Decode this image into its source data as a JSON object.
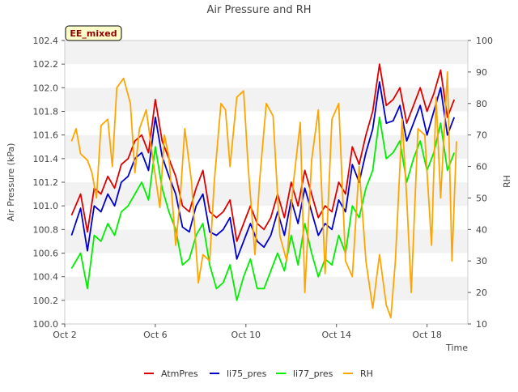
{
  "chart_data": {
    "type": "line",
    "title": "Air Pressure and RH",
    "badge": "EE_mixed",
    "xlabel": "Time",
    "ylabel": "Air Pressure (kPa)",
    "y2label": "RH",
    "xlim": [
      0,
      17.8
    ],
    "ylim": [
      100.0,
      102.4
    ],
    "y2lim": [
      10,
      100
    ],
    "x_ticks": [
      {
        "value": 0,
        "label": "Oct 2"
      },
      {
        "value": 4,
        "label": "Oct 6"
      },
      {
        "value": 8,
        "label": "Oct 10"
      },
      {
        "value": 12,
        "label": "Oct 14"
      },
      {
        "value": 16,
        "label": "Oct 18"
      }
    ],
    "y_ticks": [
      100.0,
      100.2,
      100.4,
      100.6,
      100.8,
      101.0,
      101.2,
      101.4,
      101.6,
      101.8,
      102.0,
      102.2,
      102.4
    ],
    "y2_ticks": [
      10,
      20,
      30,
      40,
      50,
      60,
      70,
      80,
      90,
      100
    ],
    "grid": "horizontal bands",
    "legend_position": "bottom",
    "series": [
      {
        "name": "AtmPres",
        "color": "#dd0000",
        "axis": "left",
        "x": [
          0.3,
          0.7,
          1.0,
          1.3,
          1.6,
          1.9,
          2.2,
          2.5,
          2.8,
          3.1,
          3.4,
          3.7,
          4.0,
          4.3,
          4.6,
          4.9,
          5.2,
          5.5,
          5.8,
          6.1,
          6.4,
          6.7,
          7.0,
          7.3,
          7.6,
          7.9,
          8.2,
          8.5,
          8.8,
          9.1,
          9.4,
          9.7,
          10.0,
          10.3,
          10.6,
          10.9,
          11.2,
          11.5,
          11.8,
          12.1,
          12.4,
          12.7,
          13.0,
          13.3,
          13.6,
          13.9,
          14.2,
          14.5,
          14.8,
          15.1,
          15.4,
          15.7,
          16.0,
          16.3,
          16.6,
          16.9,
          17.2
        ],
        "y": [
          100.92,
          101.1,
          100.78,
          101.15,
          101.1,
          101.25,
          101.15,
          101.35,
          101.4,
          101.55,
          101.6,
          101.45,
          101.9,
          101.55,
          101.4,
          101.25,
          101.0,
          100.95,
          101.15,
          101.3,
          100.95,
          100.9,
          100.95,
          101.05,
          100.7,
          100.85,
          101.0,
          100.85,
          100.8,
          100.9,
          101.1,
          100.9,
          101.2,
          101.0,
          101.3,
          101.1,
          100.9,
          101.0,
          100.95,
          101.2,
          101.1,
          101.5,
          101.35,
          101.6,
          101.8,
          102.2,
          101.85,
          101.9,
          102.0,
          101.7,
          101.85,
          102.0,
          101.8,
          101.95,
          102.15,
          101.75,
          101.9
        ]
      },
      {
        "name": "li75_pres",
        "color": "#0000cc",
        "axis": "left",
        "x": [
          0.3,
          0.7,
          1.0,
          1.3,
          1.6,
          1.9,
          2.2,
          2.5,
          2.8,
          3.1,
          3.4,
          3.7,
          4.0,
          4.3,
          4.6,
          4.9,
          5.2,
          5.5,
          5.8,
          6.1,
          6.4,
          6.7,
          7.0,
          7.3,
          7.6,
          7.9,
          8.2,
          8.5,
          8.8,
          9.1,
          9.4,
          9.7,
          10.0,
          10.3,
          10.6,
          10.9,
          11.2,
          11.5,
          11.8,
          12.1,
          12.4,
          12.7,
          13.0,
          13.3,
          13.6,
          13.9,
          14.2,
          14.5,
          14.8,
          15.1,
          15.4,
          15.7,
          16.0,
          16.3,
          16.6,
          16.9,
          17.2
        ],
        "y": [
          100.75,
          100.98,
          100.62,
          101.0,
          100.95,
          101.1,
          101.0,
          101.2,
          101.25,
          101.4,
          101.45,
          101.3,
          101.75,
          101.42,
          101.25,
          101.1,
          100.82,
          100.78,
          101.0,
          101.1,
          100.78,
          100.75,
          100.8,
          100.9,
          100.55,
          100.7,
          100.85,
          100.7,
          100.65,
          100.75,
          100.95,
          100.75,
          101.05,
          100.85,
          101.15,
          100.95,
          100.75,
          100.85,
          100.8,
          101.05,
          100.95,
          101.35,
          101.2,
          101.45,
          101.65,
          102.05,
          101.7,
          101.72,
          101.85,
          101.55,
          101.7,
          101.85,
          101.6,
          101.8,
          102.0,
          101.6,
          101.75
        ]
      },
      {
        "name": "li77_pres",
        "color": "#00ee00",
        "axis": "left",
        "x": [
          0.3,
          0.7,
          1.0,
          1.3,
          1.6,
          1.9,
          2.2,
          2.5,
          2.8,
          3.1,
          3.4,
          3.7,
          4.0,
          4.3,
          4.6,
          4.9,
          5.2,
          5.5,
          5.8,
          6.1,
          6.4,
          6.7,
          7.0,
          7.3,
          7.6,
          7.9,
          8.2,
          8.5,
          8.8,
          9.1,
          9.4,
          9.7,
          10.0,
          10.3,
          10.6,
          10.9,
          11.2,
          11.5,
          11.8,
          12.1,
          12.4,
          12.7,
          13.0,
          13.3,
          13.6,
          13.9,
          14.2,
          14.5,
          14.8,
          15.1,
          15.4,
          15.7,
          16.0,
          16.3,
          16.6,
          16.9,
          17.2
        ],
        "y": [
          100.47,
          100.6,
          100.3,
          100.75,
          100.7,
          100.85,
          100.75,
          100.95,
          101.0,
          101.1,
          101.2,
          101.05,
          101.5,
          101.15,
          100.95,
          100.8,
          100.5,
          100.55,
          100.75,
          100.85,
          100.5,
          100.3,
          100.35,
          100.5,
          100.2,
          100.4,
          100.55,
          100.3,
          100.3,
          100.45,
          100.6,
          100.45,
          100.75,
          100.5,
          100.85,
          100.6,
          100.4,
          100.55,
          100.5,
          100.75,
          100.6,
          101.0,
          100.9,
          101.15,
          101.3,
          101.75,
          101.4,
          101.45,
          101.55,
          101.2,
          101.4,
          101.55,
          101.3,
          101.45,
          101.7,
          101.3,
          101.45
        ]
      },
      {
        "name": "RH",
        "color": "#ffa500",
        "axis": "right",
        "x": [
          0.3,
          0.5,
          0.7,
          1.0,
          1.2,
          1.4,
          1.6,
          1.9,
          2.1,
          2.3,
          2.6,
          2.9,
          3.1,
          3.3,
          3.6,
          3.9,
          4.2,
          4.4,
          4.6,
          4.9,
          5.1,
          5.3,
          5.6,
          5.9,
          6.1,
          6.4,
          6.6,
          6.9,
          7.1,
          7.3,
          7.6,
          7.9,
          8.1,
          8.4,
          8.6,
          8.9,
          9.2,
          9.5,
          9.8,
          10.1,
          10.4,
          10.6,
          10.9,
          11.2,
          11.5,
          11.8,
          12.1,
          12.4,
          12.7,
          13.0,
          13.3,
          13.6,
          13.9,
          14.2,
          14.4,
          14.6,
          14.9,
          15.1,
          15.3,
          15.6,
          15.9,
          16.2,
          16.4,
          16.6,
          16.9,
          17.1,
          17.3
        ],
        "y": [
          68,
          72,
          64,
          62,
          58,
          50,
          73,
          75,
          60,
          85,
          88,
          80,
          58,
          72,
          78,
          62,
          47,
          70,
          63,
          35,
          50,
          72,
          55,
          23,
          32,
          30,
          55,
          80,
          78,
          60,
          82,
          84,
          60,
          32,
          55,
          80,
          76,
          38,
          30,
          55,
          74,
          20,
          62,
          78,
          26,
          75,
          80,
          30,
          25,
          60,
          30,
          15,
          32,
          16,
          12,
          30,
          75,
          50,
          20,
          72,
          70,
          35,
          82,
          50,
          90,
          30,
          68
        ]
      }
    ]
  }
}
